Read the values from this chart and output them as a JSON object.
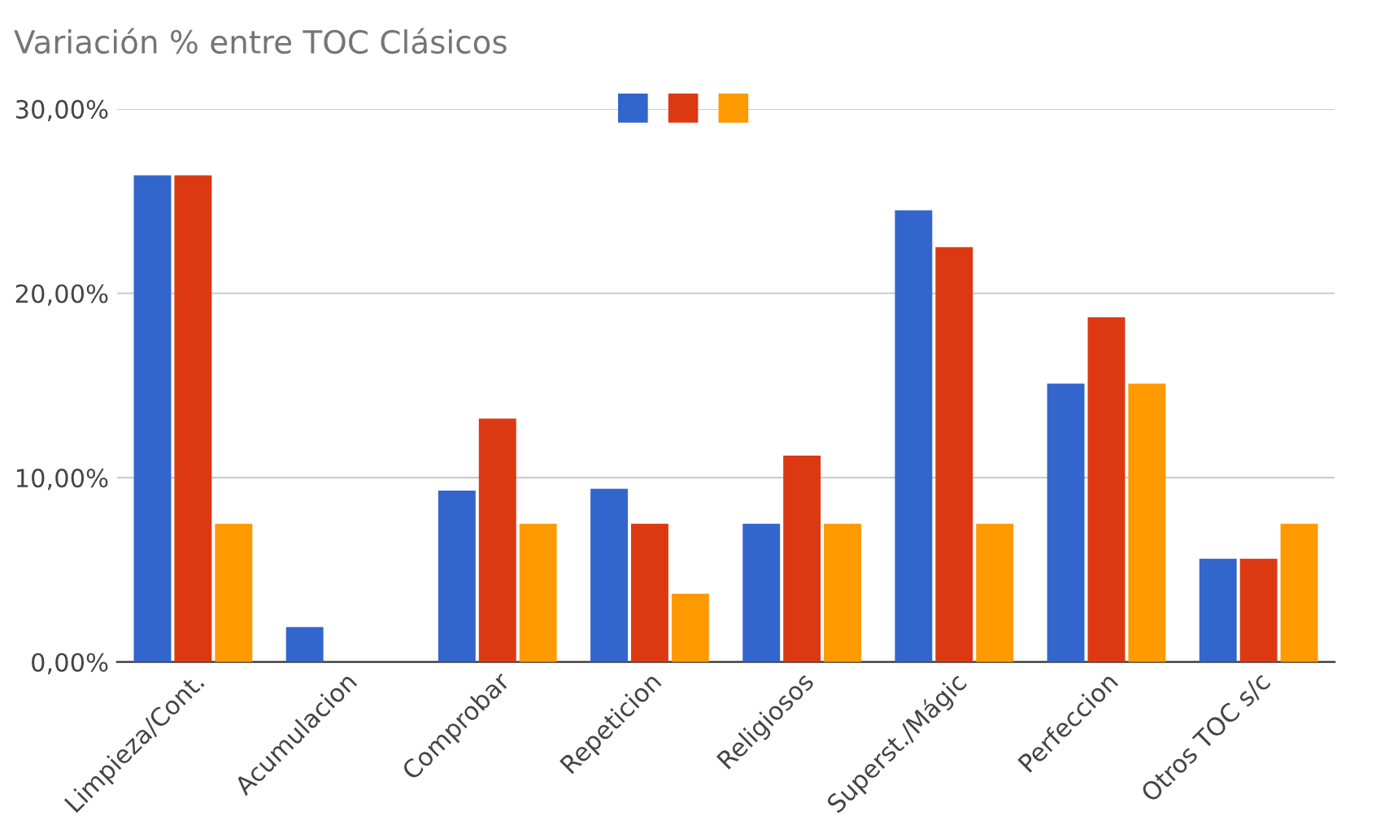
{
  "chart_data": {
    "type": "bar",
    "title": "Variación % entre TOC Clásicos",
    "categories": [
      "Limpieza/Cont.",
      "Acumulacion",
      "Comprobar",
      "Repeticion",
      "Religiosos",
      "Superst./Mágic",
      "Perfeccion",
      "Otros TOC s/c"
    ],
    "series": [
      {
        "color": "#3366cc",
        "values": [
          26.4,
          1.9,
          9.3,
          9.4,
          7.5,
          24.5,
          15.1,
          5.6
        ]
      },
      {
        "color": "#dc3912",
        "values": [
          26.4,
          0,
          13.2,
          7.5,
          11.2,
          22.5,
          18.7,
          5.6
        ]
      },
      {
        "color": "#ff9900",
        "values": [
          7.5,
          0,
          7.5,
          3.7,
          7.5,
          7.5,
          15.1,
          7.5
        ]
      }
    ],
    "ylim": [
      0,
      30
    ],
    "yticks": [
      {
        "value": 0,
        "label": "0,00%"
      },
      {
        "value": 10,
        "label": "10,00%"
      },
      {
        "value": 20,
        "label": "20,00%"
      },
      {
        "value": 30,
        "label": "30,00%"
      }
    ],
    "grid": "y"
  }
}
